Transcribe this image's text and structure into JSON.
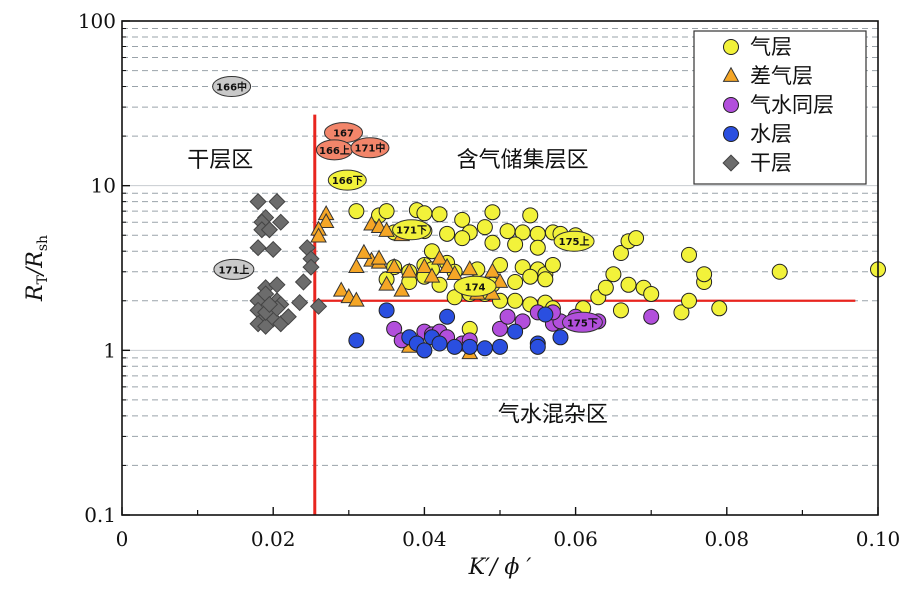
{
  "chart_data": {
    "type": "scatter",
    "x_scale": "linear",
    "y_scale": "log",
    "xlim": [
      0,
      0.1
    ],
    "ylim": [
      0.1,
      100
    ],
    "x_ticks": [
      "0",
      "0.02",
      "0.04",
      "0.06",
      "0.08",
      "0.10"
    ],
    "y_ticks": [
      "0.1",
      "1",
      "10",
      "100"
    ],
    "xlabel": {
      "main": "K′/ ϕ ′"
    },
    "ylabel": {
      "r1": "R",
      "sub1": "T",
      "slash": "/R",
      "sub2": "sh"
    },
    "grid": "horizontal dashed (log minor)",
    "legend_position": "top-right",
    "cutoffs": {
      "x": 0.0255,
      "y": 2.0,
      "y_line_x_range": [
        0.0255,
        0.097
      ]
    },
    "regions": [
      {
        "label": "干层区",
        "x": 0.013,
        "y": 13
      },
      {
        "label": "含气储集层区",
        "x": 0.053,
        "y": 13
      },
      {
        "label": "气水混杂区",
        "x": 0.057,
        "y": 0.37
      }
    ],
    "series": [
      {
        "name": "气层",
        "color": "#f2f23a",
        "marker": "circle",
        "points": [
          [
            0.031,
            7.0
          ],
          [
            0.034,
            6.6
          ],
          [
            0.035,
            7.0
          ],
          [
            0.039,
            7.1
          ],
          [
            0.04,
            6.8
          ],
          [
            0.042,
            6.7
          ],
          [
            0.045,
            6.2
          ],
          [
            0.049,
            6.9
          ],
          [
            0.054,
            6.6
          ],
          [
            0.036,
            5.2
          ],
          [
            0.04,
            5.3
          ],
          [
            0.043,
            5.1
          ],
          [
            0.046,
            5.2
          ],
          [
            0.048,
            5.6
          ],
          [
            0.051,
            5.3
          ],
          [
            0.053,
            5.2
          ],
          [
            0.055,
            5.1
          ],
          [
            0.057,
            5.2
          ],
          [
            0.058,
            5.1
          ],
          [
            0.06,
            5.0
          ],
          [
            0.045,
            4.8
          ],
          [
            0.049,
            4.5
          ],
          [
            0.052,
            4.4
          ],
          [
            0.055,
            4.2
          ],
          [
            0.041,
            4.0
          ],
          [
            0.036,
            3.2
          ],
          [
            0.038,
            3.0
          ],
          [
            0.04,
            3.3
          ],
          [
            0.041,
            3.1
          ],
          [
            0.043,
            3.4
          ],
          [
            0.044,
            3.0
          ],
          [
            0.047,
            3.1
          ],
          [
            0.05,
            3.3
          ],
          [
            0.053,
            3.2
          ],
          [
            0.055,
            3.1
          ],
          [
            0.056,
            2.9
          ],
          [
            0.057,
            3.3
          ],
          [
            0.035,
            2.7
          ],
          [
            0.038,
            2.6
          ],
          [
            0.04,
            2.8
          ],
          [
            0.042,
            2.5
          ],
          [
            0.045,
            2.4
          ],
          [
            0.047,
            2.3
          ],
          [
            0.049,
            2.5
          ],
          [
            0.052,
            2.6
          ],
          [
            0.054,
            2.8
          ],
          [
            0.056,
            2.7
          ],
          [
            0.044,
            2.1
          ],
          [
            0.046,
            2.2
          ],
          [
            0.048,
            2.2
          ],
          [
            0.05,
            2.0
          ],
          [
            0.052,
            2.0
          ],
          [
            0.054,
            1.9
          ],
          [
            0.056,
            1.95
          ],
          [
            0.057,
            1.8
          ],
          [
            0.046,
            1.35
          ],
          [
            0.061,
            1.8
          ],
          [
            0.063,
            2.1
          ],
          [
            0.064,
            2.4
          ],
          [
            0.065,
            2.9
          ],
          [
            0.066,
            1.75
          ],
          [
            0.067,
            2.5
          ],
          [
            0.069,
            2.4
          ],
          [
            0.07,
            2.2
          ],
          [
            0.066,
            3.9
          ],
          [
            0.067,
            4.6
          ],
          [
            0.068,
            4.8
          ],
          [
            0.074,
            1.7
          ],
          [
            0.075,
            2.0
          ],
          [
            0.075,
            3.8
          ],
          [
            0.077,
            2.6
          ],
          [
            0.077,
            2.9
          ],
          [
            0.079,
            1.8
          ],
          [
            0.087,
            3.0
          ],
          [
            0.1,
            3.1
          ]
        ]
      },
      {
        "name": "差气层",
        "color": "#f5a626",
        "marker": "triangle",
        "points": [
          [
            0.027,
            6.7
          ],
          [
            0.027,
            6.0
          ],
          [
            0.026,
            5.4
          ],
          [
            0.026,
            4.9
          ],
          [
            0.029,
            2.3
          ],
          [
            0.03,
            2.1
          ],
          [
            0.031,
            2.0
          ],
          [
            0.031,
            3.2
          ],
          [
            0.033,
            3.5
          ],
          [
            0.034,
            3.4
          ],
          [
            0.035,
            2.5
          ],
          [
            0.037,
            2.3
          ],
          [
            0.033,
            5.8
          ],
          [
            0.034,
            5.6
          ],
          [
            0.035,
            5.3
          ],
          [
            0.037,
            5.0
          ],
          [
            0.032,
            3.9
          ],
          [
            0.034,
            3.6
          ],
          [
            0.036,
            3.2
          ],
          [
            0.038,
            3.0
          ],
          [
            0.04,
            3.2
          ],
          [
            0.041,
            2.8
          ],
          [
            0.042,
            3.6
          ],
          [
            0.043,
            3.2
          ],
          [
            0.044,
            2.9
          ],
          [
            0.046,
            3.1
          ],
          [
            0.049,
            3.0
          ],
          [
            0.05,
            2.6
          ],
          [
            0.047,
            2.2
          ],
          [
            0.038,
            1.05
          ],
          [
            0.046,
            0.96
          ],
          [
            0.049,
            2.2
          ]
        ]
      },
      {
        "name": "气水同层",
        "color": "#b24fdc",
        "marker": "circle",
        "points": [
          [
            0.036,
            1.35
          ],
          [
            0.037,
            1.15
          ],
          [
            0.04,
            1.3
          ],
          [
            0.041,
            1.25
          ],
          [
            0.042,
            1.3
          ],
          [
            0.043,
            1.2
          ],
          [
            0.045,
            1.1
          ],
          [
            0.046,
            1.15
          ],
          [
            0.05,
            1.35
          ],
          [
            0.051,
            1.6
          ],
          [
            0.053,
            1.5
          ],
          [
            0.055,
            1.7
          ],
          [
            0.057,
            1.45
          ],
          [
            0.058,
            1.5
          ],
          [
            0.06,
            1.6
          ],
          [
            0.07,
            1.6
          ],
          [
            0.057,
            1.7
          ],
          [
            0.063,
            1.5
          ]
        ]
      },
      {
        "name": "水层",
        "color": "#2a4fe0",
        "marker": "circle",
        "points": [
          [
            0.031,
            1.15
          ],
          [
            0.035,
            1.75
          ],
          [
            0.038,
            1.2
          ],
          [
            0.039,
            1.1
          ],
          [
            0.04,
            1.0
          ],
          [
            0.041,
            1.2
          ],
          [
            0.042,
            1.1
          ],
          [
            0.043,
            1.6
          ],
          [
            0.044,
            1.05
          ],
          [
            0.046,
            1.05
          ],
          [
            0.048,
            1.03
          ],
          [
            0.05,
            1.05
          ],
          [
            0.052,
            1.3
          ],
          [
            0.055,
            1.1
          ],
          [
            0.055,
            1.05
          ],
          [
            0.056,
            1.65
          ],
          [
            0.058,
            1.2
          ]
        ]
      },
      {
        "name": "干层",
        "color": "#6c6c6c",
        "marker": "diamond",
        "points": [
          [
            0.018,
            8.0
          ],
          [
            0.0205,
            8.0
          ],
          [
            0.019,
            6.4
          ],
          [
            0.0185,
            6.0
          ],
          [
            0.021,
            6.0
          ],
          [
            0.0185,
            5.4
          ],
          [
            0.0195,
            5.4
          ],
          [
            0.018,
            4.2
          ],
          [
            0.02,
            4.1
          ],
          [
            0.0245,
            4.2
          ],
          [
            0.025,
            3.6
          ],
          [
            0.025,
            3.2
          ],
          [
            0.019,
            2.4
          ],
          [
            0.0205,
            2.5
          ],
          [
            0.018,
            2.0
          ],
          [
            0.019,
            2.2
          ],
          [
            0.0205,
            2.0
          ],
          [
            0.021,
            1.9
          ],
          [
            0.0235,
            1.95
          ],
          [
            0.024,
            2.6
          ],
          [
            0.018,
            1.75
          ],
          [
            0.019,
            1.6
          ],
          [
            0.02,
            1.55
          ],
          [
            0.018,
            1.45
          ],
          [
            0.019,
            1.4
          ],
          [
            0.021,
            1.45
          ],
          [
            0.022,
            1.6
          ],
          [
            0.026,
            1.85
          ],
          [
            0.019,
            1.7
          ],
          [
            0.0205,
            1.8
          ],
          [
            0.0195,
            1.9
          ]
        ]
      }
    ],
    "annotations": [
      {
        "label": "166中",
        "x": 0.0145,
        "y": 40,
        "w": 38,
        "fill": "#c9c9c9"
      },
      {
        "label": "167",
        "x": 0.0293,
        "y": 21,
        "w": 38,
        "fill": "#f2856a"
      },
      {
        "label": "166上",
        "x": 0.0281,
        "y": 16.5,
        "w": 36,
        "fill": "#f2856a"
      },
      {
        "label": "171中",
        "x": 0.0328,
        "y": 17.0,
        "w": 38,
        "fill": "#f2856a"
      },
      {
        "label": "166下",
        "x": 0.0298,
        "y": 10.8,
        "w": 38,
        "fill": "#f2f23a"
      },
      {
        "label": "171下",
        "x": 0.0383,
        "y": 5.4,
        "w": 38,
        "fill": "#f2f23a"
      },
      {
        "label": "175上",
        "x": 0.0598,
        "y": 4.6,
        "w": 40,
        "fill": "#f2f23a"
      },
      {
        "label": "171上",
        "x": 0.0148,
        "y": 3.1,
        "w": 40,
        "fill": "#c9c9c9"
      },
      {
        "label": "174",
        "x": 0.0467,
        "y": 2.45,
        "w": 42,
        "fill": "#f2f23a"
      },
      {
        "label": "175下",
        "x": 0.0609,
        "y": 1.48,
        "w": 40,
        "fill": "#b24fdc"
      }
    ]
  }
}
